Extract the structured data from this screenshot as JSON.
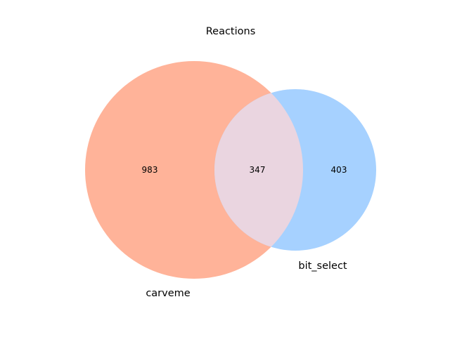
{
  "title": "Reactions",
  "colors": {
    "left_only": "#ffb399",
    "right_only": "#a6d1ff",
    "overlap": "#ead5e0",
    "text": "#000000"
  },
  "sets": {
    "left": {
      "label": "carveme",
      "only_count": "983"
    },
    "right": {
      "label": "bit_select",
      "only_count": "403"
    },
    "overlap_count": "347"
  }
}
